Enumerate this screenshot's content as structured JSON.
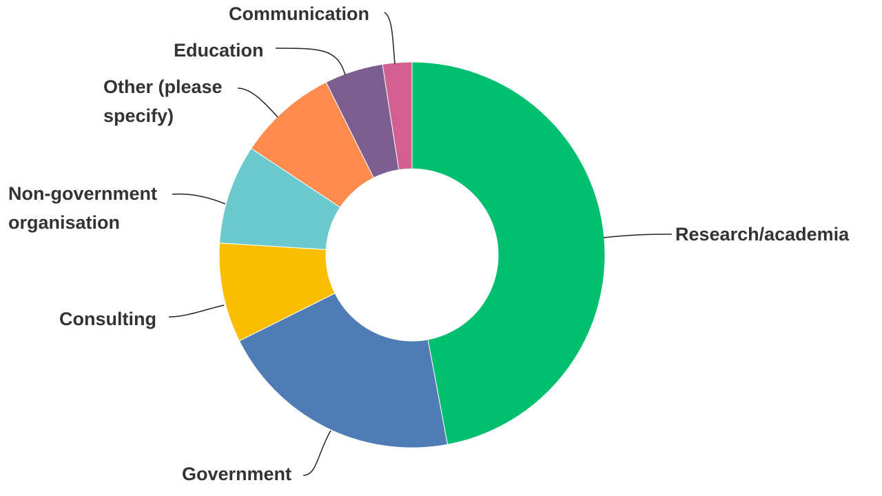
{
  "chart_data": {
    "type": "pie",
    "style": "donut",
    "categories": [
      "Research/academia",
      "Government",
      "Consulting",
      "Non-government organisation",
      "Other (please specify)",
      "Education",
      "Communication"
    ],
    "values": [
      48.0,
      21.0,
      8.5,
      8.5,
      8.5,
      5.0,
      2.5
    ],
    "colors": [
      "#00bf6f",
      "#507cb6",
      "#f9be00",
      "#6bc8cd",
      "#ff8b4f",
      "#7d5e90",
      "#d25f90"
    ],
    "slice_labels": [
      [
        "Research/academia"
      ],
      [
        "Government"
      ],
      [
        "Consulting"
      ],
      [
        "Non-government",
        "organisation"
      ],
      [
        "Other (please",
        "specify)"
      ],
      [
        "Education"
      ],
      [
        "Communication"
      ]
    ]
  }
}
